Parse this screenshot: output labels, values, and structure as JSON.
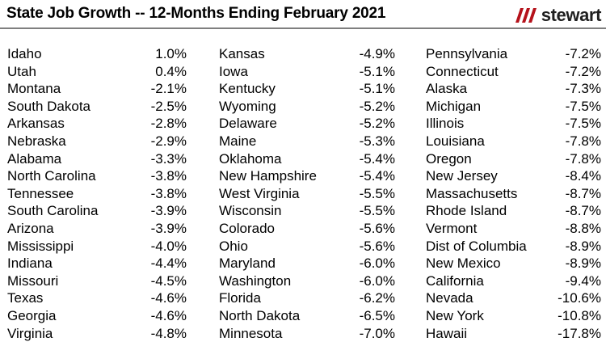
{
  "header": {
    "title": "State Job Growth -- 12-Months Ending February 2021",
    "logo_text": "stewart",
    "logo_color": "#b5121b"
  },
  "columns": [
    [
      {
        "state": "Idaho",
        "pct": "1.0%"
      },
      {
        "state": "Utah",
        "pct": "0.4%"
      },
      {
        "state": "Montana",
        "pct": "-2.1%"
      },
      {
        "state": "South Dakota",
        "pct": "-2.5%"
      },
      {
        "state": "Arkansas",
        "pct": "-2.8%"
      },
      {
        "state": "Nebraska",
        "pct": "-2.9%"
      },
      {
        "state": "Alabama",
        "pct": "-3.3%"
      },
      {
        "state": "North Carolina",
        "pct": "-3.8%"
      },
      {
        "state": "Tennessee",
        "pct": "-3.8%"
      },
      {
        "state": "South Carolina",
        "pct": "-3.9%"
      },
      {
        "state": "Arizona",
        "pct": "-3.9%"
      },
      {
        "state": "Mississippi",
        "pct": "-4.0%"
      },
      {
        "state": "Indiana",
        "pct": "-4.4%"
      },
      {
        "state": "Missouri",
        "pct": "-4.5%"
      },
      {
        "state": "Texas",
        "pct": "-4.6%"
      },
      {
        "state": "Georgia",
        "pct": "-4.6%"
      },
      {
        "state": "Virginia",
        "pct": "-4.8%"
      }
    ],
    [
      {
        "state": "Kansas",
        "pct": "-4.9%"
      },
      {
        "state": "Iowa",
        "pct": "-5.1%"
      },
      {
        "state": "Kentucky",
        "pct": "-5.1%"
      },
      {
        "state": "Wyoming",
        "pct": "-5.2%"
      },
      {
        "state": "Delaware",
        "pct": "-5.2%"
      },
      {
        "state": "Maine",
        "pct": "-5.3%"
      },
      {
        "state": "Oklahoma",
        "pct": "-5.4%"
      },
      {
        "state": "New Hampshire",
        "pct": "-5.4%"
      },
      {
        "state": "West Virginia",
        "pct": "-5.5%"
      },
      {
        "state": "Wisconsin",
        "pct": "-5.5%"
      },
      {
        "state": "Colorado",
        "pct": "-5.6%"
      },
      {
        "state": "Ohio",
        "pct": "-5.6%"
      },
      {
        "state": "Maryland",
        "pct": "-6.0%"
      },
      {
        "state": "Washington",
        "pct": "-6.0%"
      },
      {
        "state": "Florida",
        "pct": "-6.2%"
      },
      {
        "state": "North Dakota",
        "pct": "-6.5%"
      },
      {
        "state": "Minnesota",
        "pct": "-7.0%"
      }
    ],
    [
      {
        "state": "Pennsylvania",
        "pct": "-7.2%"
      },
      {
        "state": "Connecticut",
        "pct": "-7.2%"
      },
      {
        "state": "Alaska",
        "pct": "-7.3%"
      },
      {
        "state": "Michigan",
        "pct": "-7.5%"
      },
      {
        "state": "Illinois",
        "pct": "-7.5%"
      },
      {
        "state": "Louisiana",
        "pct": "-7.8%"
      },
      {
        "state": "Oregon",
        "pct": "-7.8%"
      },
      {
        "state": "New Jersey",
        "pct": "-8.4%"
      },
      {
        "state": "Massachusetts",
        "pct": "-8.7%"
      },
      {
        "state": "Rhode Island",
        "pct": "-8.7%"
      },
      {
        "state": "Vermont",
        "pct": "-8.8%"
      },
      {
        "state": "Dist of Columbia",
        "pct": "-8.9%"
      },
      {
        "state": "New Mexico",
        "pct": "-8.9%"
      },
      {
        "state": "California",
        "pct": "-9.4%"
      },
      {
        "state": "Nevada",
        "pct": "-10.6%"
      },
      {
        "state": "New York",
        "pct": "-10.8%"
      },
      {
        "state": "Hawaii",
        "pct": "-17.8%"
      }
    ]
  ]
}
